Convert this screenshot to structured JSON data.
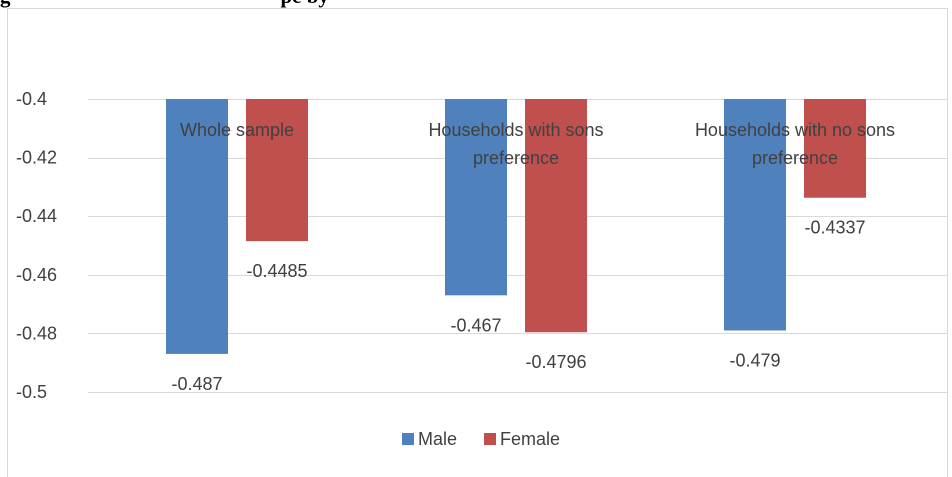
{
  "figure_heading": {
    "prefix": "g",
    "suffix": "pe by"
  },
  "chart_data": {
    "type": "bar",
    "title": "",
    "xlabel": "",
    "ylabel": "",
    "categories": [
      "Whole sample",
      "Households with sons preference",
      "Households with no sons preference"
    ],
    "series": [
      {
        "name": "Male",
        "color": "#4F81BD",
        "values": [
          -0.487,
          -0.467,
          -0.479
        ],
        "labels": [
          "-0.487",
          "-0.467",
          "-0.479"
        ]
      },
      {
        "name": "Female",
        "color": "#C0504D",
        "values": [
          -0.4485,
          -0.4796,
          -0.4337
        ],
        "labels": [
          "-0.4485",
          "-0.4796",
          "-0.4337"
        ]
      }
    ],
    "ylim": [
      -0.5,
      -0.4
    ],
    "yticks": [
      -0.4,
      -0.42,
      -0.44,
      -0.46,
      -0.48,
      -0.5
    ],
    "ytick_labels": [
      "-0.4",
      "-0.42",
      "-0.44",
      "-0.46",
      "-0.48",
      "-0.5"
    ],
    "bars_hang_from": -0.4,
    "grid": true,
    "legend_position": "bottom"
  }
}
